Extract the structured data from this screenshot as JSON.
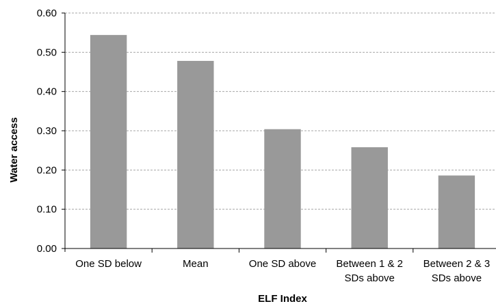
{
  "chart_data": {
    "type": "bar",
    "title": "",
    "xlabel": "ELF Index",
    "ylabel": "Water access",
    "ylim": [
      0,
      0.6
    ],
    "y_ticks": [
      "0.00",
      "0.10",
      "0.20",
      "0.30",
      "0.40",
      "0.50",
      "0.60"
    ],
    "categories": [
      [
        "One SD below"
      ],
      [
        "Mean"
      ],
      [
        "One SD above"
      ],
      [
        "Between 1 & 2",
        "SDs above"
      ],
      [
        "Between 2 & 3",
        "SDs above"
      ]
    ],
    "values": [
      0.544,
      0.478,
      0.304,
      0.258,
      0.186
    ],
    "grid": true,
    "bar_color": "#999999"
  }
}
